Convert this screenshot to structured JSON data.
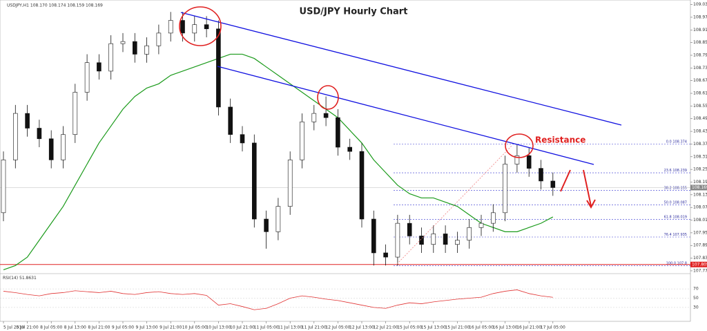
{
  "chart_data": {
    "type": "candlestick",
    "title": "USD/JPY Hourly Chart",
    "header": "USDJPY,H1 108.170 108.174 108.159 108.169",
    "annotation": "Resistance",
    "categories": [
      "5 Jul 2019",
      null,
      "5 Jul 21:00",
      null,
      "8 Jul 05:00",
      null,
      "8 Jul 13:00",
      null,
      "8 Jul 21:00",
      null,
      "9 Jul 05:00",
      null,
      "9 Jul 13:00",
      null,
      "9 Jul 21:00",
      null,
      "10 Jul 05:00",
      null,
      "10 Jul 13:00",
      null,
      "10 Jul 21:00",
      null,
      "11 Jul 05:00",
      null,
      "11 Jul 13:00",
      null,
      "11 Jul 21:00",
      null,
      "12 Jul 05:00",
      null,
      "12 Jul 13:00",
      null,
      "12 Jul 21:00",
      null,
      "15 Jul 05:00",
      null,
      "15 Jul 13:00",
      null,
      "15 Jul 21:00",
      null,
      "16 Jul 05:00",
      null,
      "16 Jul 13:00",
      null,
      "16 Jul 21:00",
      null,
      "17 Jul 05:00"
    ],
    "open": [
      108.05,
      108.3,
      108.52,
      108.45,
      108.4,
      108.3,
      108.42,
      108.62,
      108.76,
      108.72,
      108.85,
      108.86,
      108.8,
      108.84,
      108.9,
      108.96,
      108.9,
      108.94,
      108.92,
      108.55,
      108.42,
      108.38,
      108.02,
      107.96,
      108.08,
      108.3,
      108.48,
      108.52,
      108.5,
      108.36,
      108.34,
      108.02,
      107.86,
      107.84,
      108.0,
      107.94,
      107.9,
      107.95,
      107.9,
      107.92,
      107.98,
      108.0,
      108.05,
      108.28,
      108.32,
      108.26,
      108.2
    ],
    "high": [
      108.34,
      108.56,
      108.56,
      108.49,
      108.44,
      108.46,
      108.66,
      108.8,
      108.8,
      108.89,
      108.9,
      108.9,
      108.88,
      108.94,
      109.0,
      109.0,
      108.98,
      108.98,
      108.96,
      108.59,
      108.46,
      108.42,
      108.06,
      108.12,
      108.34,
      108.52,
      108.56,
      108.6,
      108.54,
      108.4,
      108.38,
      108.06,
      107.9,
      108.04,
      108.04,
      107.98,
      107.99,
      107.99,
      107.96,
      108.02,
      108.04,
      108.09,
      108.32,
      108.374,
      108.36,
      108.3,
      108.24
    ],
    "low": [
      108.01,
      108.26,
      108.41,
      108.36,
      108.26,
      108.26,
      108.38,
      108.58,
      108.68,
      108.68,
      108.81,
      108.76,
      108.76,
      108.8,
      108.86,
      108.86,
      108.86,
      108.88,
      108.51,
      108.38,
      108.34,
      107.98,
      107.88,
      107.92,
      108.04,
      108.26,
      108.44,
      108.46,
      108.32,
      108.3,
      107.98,
      107.8,
      107.8,
      107.8,
      107.9,
      107.86,
      107.86,
      107.86,
      107.86,
      107.88,
      107.94,
      107.96,
      108.01,
      108.24,
      108.22,
      108.16,
      108.13
    ],
    "close": [
      108.3,
      108.52,
      108.45,
      108.4,
      108.3,
      108.42,
      108.62,
      108.76,
      108.72,
      108.85,
      108.86,
      108.8,
      108.84,
      108.9,
      108.96,
      108.9,
      108.94,
      108.92,
      108.55,
      108.42,
      108.38,
      108.02,
      107.96,
      108.08,
      108.3,
      108.48,
      108.52,
      108.5,
      108.36,
      108.34,
      108.02,
      107.86,
      107.84,
      108.0,
      107.94,
      107.9,
      107.95,
      107.9,
      107.92,
      107.98,
      108.0,
      108.05,
      108.28,
      108.32,
      108.26,
      108.2,
      108.169
    ],
    "ma": {
      "color": "#1a9a1a",
      "values": [
        107.78,
        107.8,
        107.84,
        107.92,
        108.0,
        108.08,
        108.18,
        108.28,
        108.38,
        108.46,
        108.54,
        108.6,
        108.64,
        108.66,
        108.7,
        108.72,
        108.74,
        108.76,
        108.78,
        108.8,
        108.8,
        108.78,
        108.74,
        108.7,
        108.66,
        108.62,
        108.58,
        108.54,
        108.5,
        108.44,
        108.38,
        108.3,
        108.24,
        108.18,
        108.14,
        108.12,
        108.12,
        108.1,
        108.08,
        108.04,
        108.0,
        107.98,
        107.96,
        107.96,
        107.98,
        108.0,
        108.03
      ]
    },
    "ylim": [
      107.765,
      109.05
    ],
    "yticks": [
      109.035,
      108.975,
      108.915,
      108.855,
      108.795,
      108.735,
      108.675,
      108.615,
      108.555,
      108.495,
      108.435,
      108.375,
      108.315,
      108.255,
      108.195,
      108.135,
      108.075,
      108.015,
      107.955,
      107.895,
      107.835,
      107.775
    ],
    "fibonacci": [
      {
        "label": "0.0",
        "value": 108.374
      },
      {
        "label": "23.6",
        "value": 108.239
      },
      {
        "label": "38.2",
        "value": 108.155
      },
      {
        "label": "50.0",
        "value": 108.087
      },
      {
        "label": "61.8",
        "value": 108.019
      },
      {
        "label": "76.4",
        "value": 107.935
      },
      {
        "label": "100.0",
        "value": 107.8
      }
    ],
    "support": 107.805,
    "rsi": {
      "name": "RSI(14)",
      "color": "#e03030",
      "ylim": [
        0,
        100
      ],
      "yticks": [
        70,
        50,
        30
      ],
      "values": [
        65,
        62,
        58,
        55,
        60,
        62,
        66,
        64,
        62,
        65,
        60,
        58,
        62,
        64,
        60,
        58,
        60,
        56,
        35,
        38,
        32,
        25,
        28,
        38,
        50,
        55,
        52,
        48,
        45,
        40,
        35,
        30,
        28,
        35,
        40,
        38,
        42,
        45,
        48,
        50,
        52,
        60,
        65,
        68,
        60,
        55,
        51.8631
      ]
    }
  }
}
